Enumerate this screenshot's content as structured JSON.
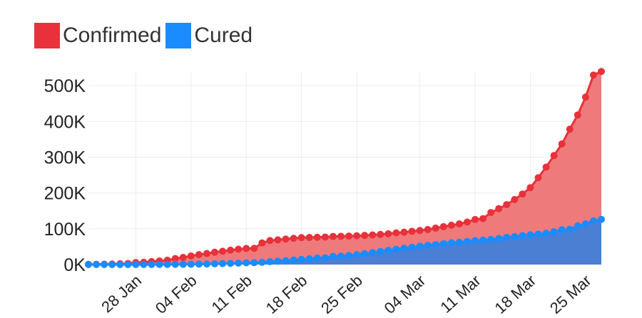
{
  "colors": {
    "confirmed": "#e8313a",
    "confirmed_fill": "#ef7a7c",
    "cured": "#1a8cff",
    "cured_fill": "#4a7fd4",
    "grid": "#ececec"
  },
  "chart_data": {
    "type": "area",
    "title": "",
    "xlabel": "",
    "ylabel": "",
    "legend_position": "top-left",
    "grid": true,
    "ylim": [
      0,
      540000
    ],
    "y_ticks": [
      0,
      100000,
      200000,
      300000,
      400000,
      500000
    ],
    "y_tick_labels": [
      "0K",
      "100K",
      "200K",
      "300K",
      "400K",
      "500K"
    ],
    "x_start_date": "22 Jan",
    "x_ticks": [
      "28 Jan",
      "04 Feb",
      "11 Feb",
      "18 Feb",
      "25 Feb",
      "04 Mar",
      "11 Mar",
      "18 Mar",
      "25 Mar"
    ],
    "x_tick_day_index": [
      6,
      13,
      20,
      27,
      34,
      42,
      49,
      56,
      63
    ],
    "x": [
      "22 Jan",
      "23 Jan",
      "24 Jan",
      "25 Jan",
      "26 Jan",
      "27 Jan",
      "28 Jan",
      "29 Jan",
      "30 Jan",
      "31 Jan",
      "01 Feb",
      "02 Feb",
      "03 Feb",
      "04 Feb",
      "05 Feb",
      "06 Feb",
      "07 Feb",
      "08 Feb",
      "09 Feb",
      "10 Feb",
      "11 Feb",
      "12 Feb",
      "13 Feb",
      "14 Feb",
      "15 Feb",
      "16 Feb",
      "17 Feb",
      "18 Feb",
      "19 Feb",
      "20 Feb",
      "21 Feb",
      "22 Feb",
      "23 Feb",
      "24 Feb",
      "25 Feb",
      "26 Feb",
      "27 Feb",
      "28 Feb",
      "29 Feb",
      "01 Mar",
      "02 Mar",
      "03 Mar",
      "04 Mar",
      "05 Mar",
      "06 Mar",
      "07 Mar",
      "08 Mar",
      "09 Mar",
      "10 Mar",
      "11 Mar",
      "12 Mar",
      "13 Mar",
      "14 Mar",
      "15 Mar",
      "16 Mar",
      "17 Mar",
      "18 Mar",
      "19 Mar",
      "20 Mar",
      "21 Mar",
      "22 Mar",
      "23 Mar",
      "24 Mar",
      "25 Mar",
      "26 Mar",
      "27 Mar"
    ],
    "series": [
      {
        "name": "Confirmed",
        "values": [
          555,
          654,
          941,
          1434,
          2118,
          2927,
          5578,
          6166,
          8234,
          9927,
          12038,
          16787,
          19881,
          23892,
          27635,
          30794,
          34391,
          37120,
          40150,
          42762,
          44802,
          45221,
          60368,
          66885,
          69030,
          71224,
          73258,
          75136,
          75639,
          76197,
          76819,
          78572,
          78958,
          79561,
          80406,
          81388,
          82746,
          84112,
          86011,
          88369,
          90306,
          92840,
          95120,
          97886,
          101801,
          105847,
          109821,
          113590,
          118620,
          125875,
          128352,
          145205,
          156101,
          167454,
          181574,
          197102,
          214821,
          242570,
          272208,
          304507,
          336953,
          378235,
          418045,
          467653,
          529591,
          539500
        ]
      },
      {
        "name": "Cured",
        "values": [
          28,
          30,
          36,
          39,
          52,
          61,
          107,
          126,
          143,
          222,
          284,
          472,
          623,
          852,
          1124,
          1487,
          2011,
          2616,
          3244,
          3946,
          4683,
          5150,
          6295,
          8058,
          9395,
          10865,
          12583,
          14352,
          16121,
          18177,
          18890,
          22886,
          23394,
          25227,
          27905,
          30384,
          33277,
          36711,
          39782,
          42716,
          45602,
          48229,
          51171,
          53797,
          55866,
          58359,
          60694,
          62494,
          64404,
          67003,
          68324,
          70251,
          72624,
          76034,
          78088,
          80840,
          83207,
          84962,
          87403,
          91676,
          97243,
          98334,
          107990,
          113770,
          122150,
          126000
        ]
      }
    ]
  }
}
